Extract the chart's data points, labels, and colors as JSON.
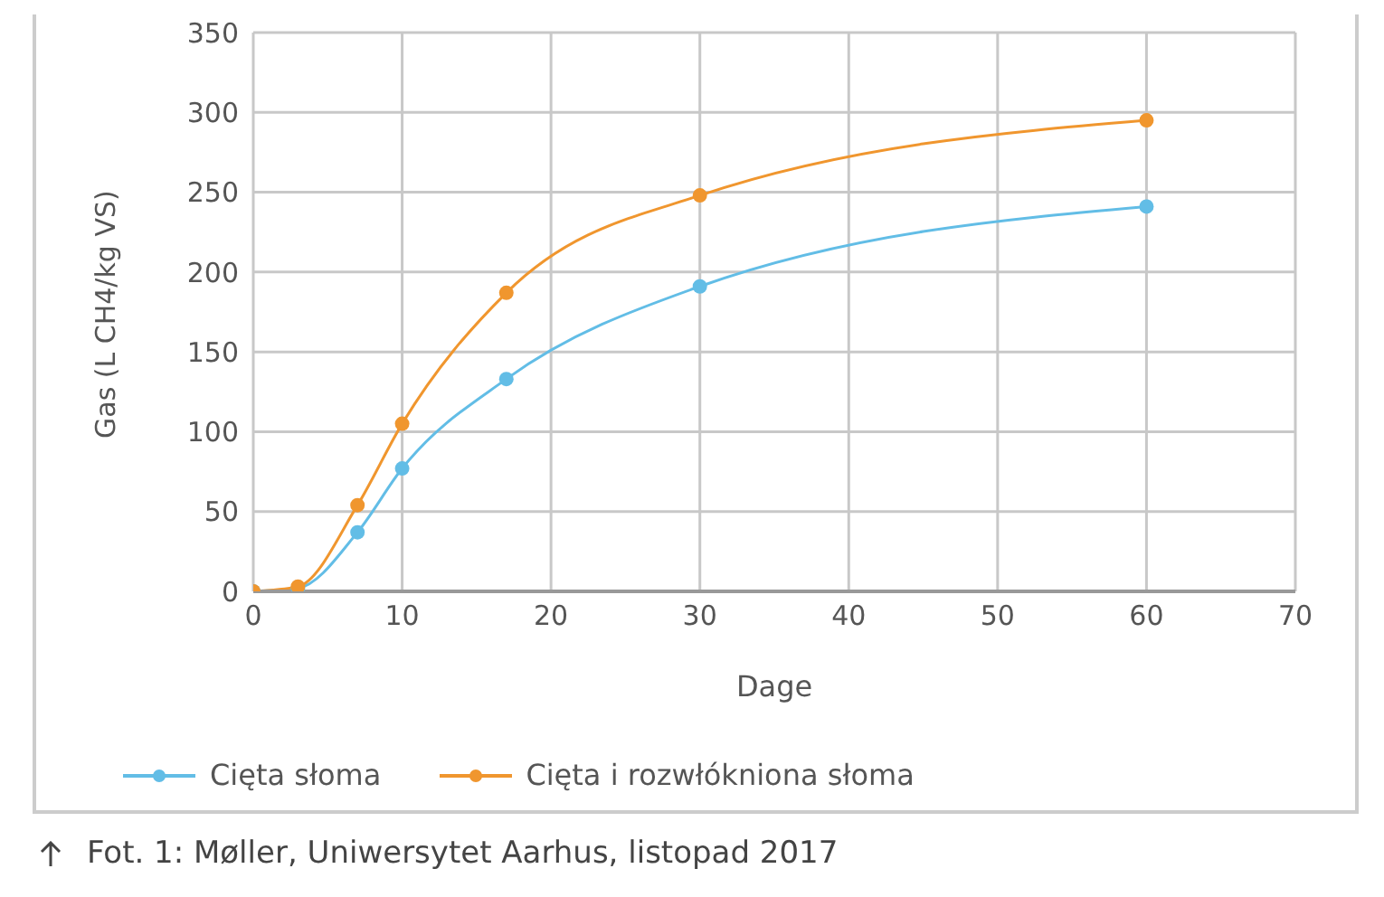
{
  "chart_data": {
    "type": "line",
    "xlabel": "Dage",
    "ylabel": "Gas (L CH4/kg VS)",
    "x": [
      0,
      3,
      7,
      10,
      17,
      30,
      60
    ],
    "series": [
      {
        "name": "Cięta słoma",
        "color": "#62bde6",
        "values": [
          0,
          2,
          37,
          77,
          133,
          191,
          241
        ]
      },
      {
        "name": "Cięta i rozwłókniona słoma",
        "color": "#f0962e",
        "values": [
          0,
          3,
          54,
          105,
          187,
          248,
          295
        ]
      }
    ],
    "xlim": [
      0,
      70
    ],
    "xticks": [
      0,
      10,
      20,
      30,
      40,
      50,
      60,
      70
    ],
    "ylim": [
      0,
      350
    ],
    "yticks": [
      0,
      50,
      100,
      150,
      200,
      250,
      300,
      350
    ],
    "grid": true,
    "legend": "bottom",
    "marker": "circle",
    "line_style": "solid",
    "annotations": [
      "Fot. 1: Møller, Uniwersytet Aarhus, listopad 2017"
    ]
  }
}
